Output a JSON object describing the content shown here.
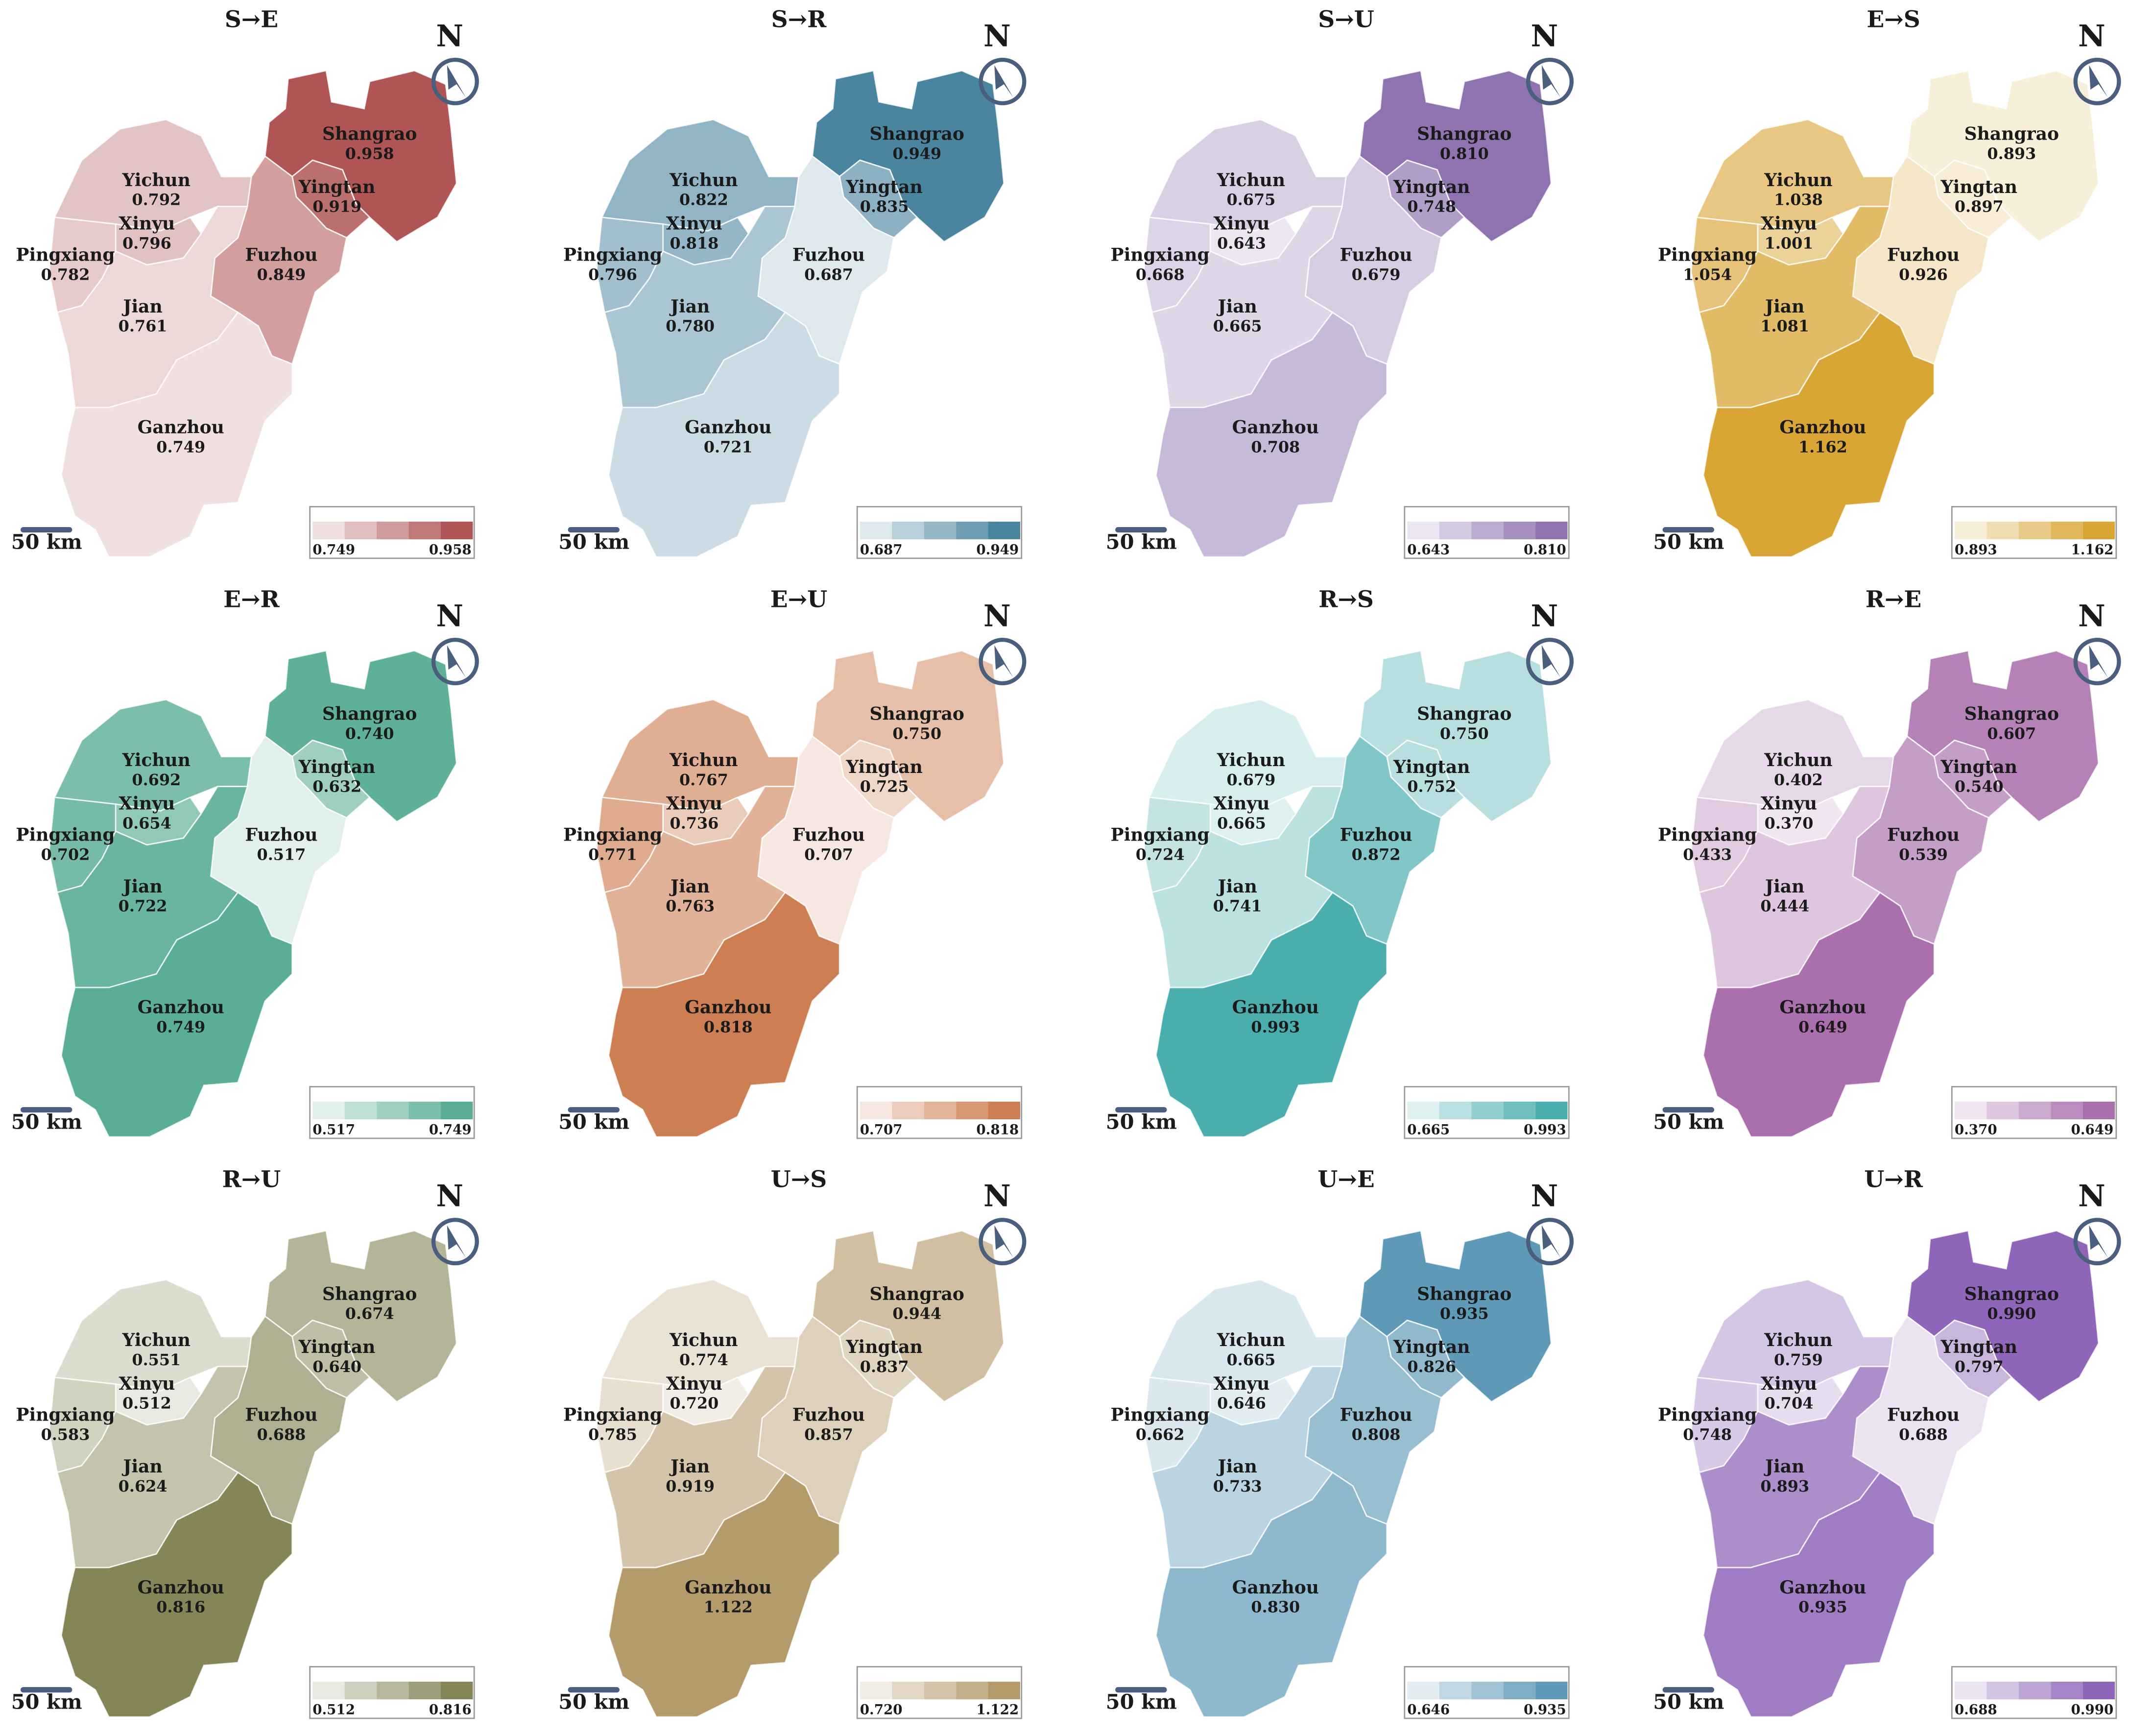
{
  "north": "N",
  "scale": "50 km",
  "regions": [
    "Shangrao",
    "Yingtan",
    "Yichun",
    "Xinyu",
    "Pingxiang",
    "Fuzhou",
    "Jian",
    "Ganzhou"
  ],
  "panels": [
    {
      "title": "S→E",
      "color": "#b05555",
      "legend": [
        "0.749",
        "0.958"
      ],
      "values": [
        "0.958",
        "0.919",
        "0.792",
        "0.796",
        "0.782",
        "0.849",
        "0.761",
        "0.749"
      ]
    },
    {
      "title": "S→R",
      "color": "#4a85a0",
      "legend": [
        "0.687",
        "0.949"
      ],
      "values": [
        "0.949",
        "0.835",
        "0.822",
        "0.818",
        "0.796",
        "0.687",
        "0.780",
        "0.721"
      ]
    },
    {
      "title": "S→U",
      "color": "#8e73b0",
      "legend": [
        "0.643",
        "0.810"
      ],
      "values": [
        "0.810",
        "0.748",
        "0.675",
        "0.643",
        "0.668",
        "0.679",
        "0.665",
        "0.708"
      ]
    },
    {
      "title": "E→S",
      "color": "#d9a535",
      "legend": [
        "0.893",
        "1.162"
      ],
      "values": [
        "0.893",
        "0.897",
        "1.038",
        "1.001",
        "1.054",
        "0.926",
        "1.081",
        "1.162"
      ]
    },
    {
      "title": "E→R",
      "color": "#5aad96",
      "legend": [
        "0.517",
        "0.749"
      ],
      "values": [
        "0.740",
        "0.632",
        "0.692",
        "0.654",
        "0.702",
        "0.517",
        "0.722",
        "0.749"
      ]
    },
    {
      "title": "E→U",
      "color": "#cd7e52",
      "legend": [
        "0.707",
        "0.818"
      ],
      "values": [
        "0.750",
        "0.725",
        "0.767",
        "0.736",
        "0.771",
        "0.707",
        "0.763",
        "0.818"
      ]
    },
    {
      "title": "R→S",
      "color": "#4aaeae",
      "legend": [
        "0.665",
        "0.993"
      ],
      "values": [
        "0.750",
        "0.752",
        "0.679",
        "0.665",
        "0.724",
        "0.872",
        "0.741",
        "0.993"
      ]
    },
    {
      "title": "R→E",
      "color": "#a970ad",
      "legend": [
        "0.370",
        "0.649"
      ],
      "values": [
        "0.607",
        "0.540",
        "0.402",
        "0.370",
        "0.433",
        "0.539",
        "0.444",
        "0.649"
      ]
    },
    {
      "title": "R→U",
      "color": "#858558",
      "legend": [
        "0.512",
        "0.816"
      ],
      "values": [
        "0.674",
        "0.640",
        "0.551",
        "0.512",
        "0.583",
        "0.688",
        "0.624",
        "0.816"
      ]
    },
    {
      "title": "U→S",
      "color": "#b59a6c",
      "legend": [
        "0.720",
        "1.122"
      ],
      "values": [
        "0.944",
        "0.837",
        "0.774",
        "0.720",
        "0.785",
        "0.857",
        "0.919",
        "1.122"
      ]
    },
    {
      "title": "U→E",
      "color": "#5e9ab8",
      "legend": [
        "0.646",
        "0.935"
      ],
      "values": [
        "0.935",
        "0.826",
        "0.665",
        "0.646",
        "0.662",
        "0.808",
        "0.733",
        "0.830"
      ]
    },
    {
      "title": "U→R",
      "color": "#8e65b8",
      "legend": [
        "0.688",
        "0.990"
      ],
      "values": [
        "0.990",
        "0.797",
        "0.759",
        "0.704",
        "0.748",
        "0.688",
        "0.893",
        "0.935"
      ]
    }
  ]
}
